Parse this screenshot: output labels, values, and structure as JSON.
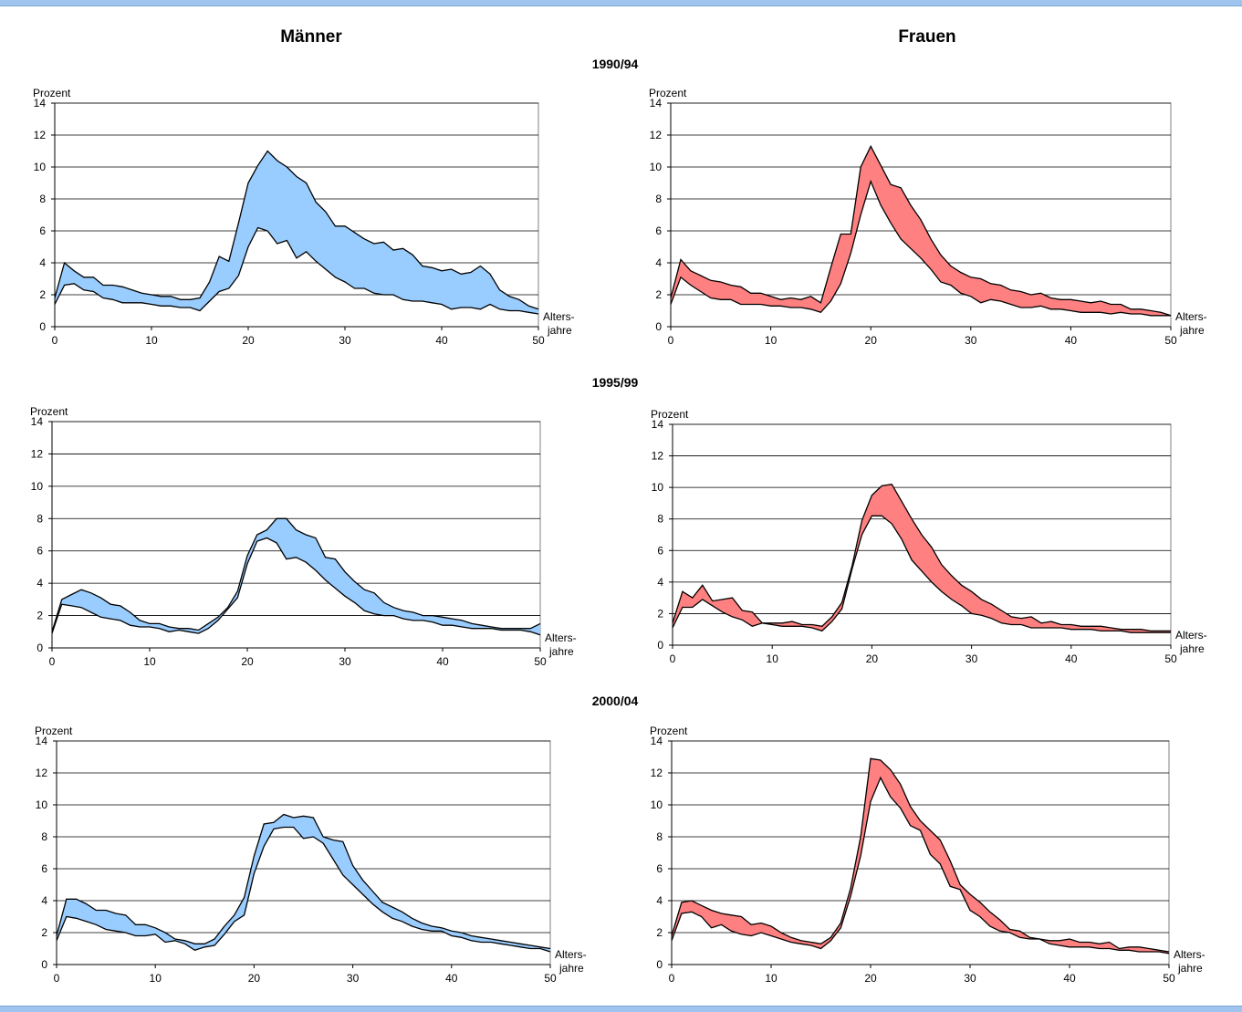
{
  "colors": {
    "men_fill": "#99ccff",
    "women_fill": "#ff8080",
    "line": "#000000",
    "grid": "#000000",
    "frame": "#808080",
    "banner": "#9fc5ee"
  },
  "headers": {
    "men": "Männer",
    "women": "Frauen"
  },
  "periods": [
    "1990/94",
    "1995/99",
    "2000/04"
  ],
  "chart_data": [
    {
      "type": "area",
      "series_kind": "band",
      "period": "1990/94",
      "sex": "Männer",
      "ylabel": "Prozent",
      "xlabel": [
        "Alters-",
        "jahre"
      ],
      "xlim": [
        0,
        50
      ],
      "ylim": [
        0,
        14
      ],
      "xticks": [
        0,
        10,
        20,
        30,
        40,
        50
      ],
      "yticks": [
        0,
        2,
        4,
        6,
        8,
        10,
        12,
        14
      ],
      "grid": "horizontal",
      "x": [
        0,
        1,
        2,
        3,
        4,
        5,
        6,
        7,
        8,
        9,
        10,
        11,
        12,
        13,
        14,
        15,
        16,
        17,
        18,
        19,
        20,
        21,
        22,
        23,
        24,
        25,
        26,
        27,
        28,
        29,
        30,
        31,
        32,
        33,
        34,
        35,
        36,
        37,
        38,
        39,
        40,
        41,
        42,
        43,
        44,
        45,
        46,
        47,
        48,
        49,
        50
      ],
      "upper": [
        1.8,
        4.0,
        3.5,
        3.1,
        3.1,
        2.6,
        2.6,
        2.5,
        2.3,
        2.1,
        2.0,
        1.9,
        1.9,
        1.7,
        1.7,
        1.8,
        2.8,
        4.4,
        4.1,
        6.5,
        9.0,
        10.1,
        11.0,
        10.4,
        10.0,
        9.4,
        9.0,
        7.8,
        7.2,
        6.3,
        6.3,
        5.9,
        5.5,
        5.2,
        5.3,
        4.8,
        4.9,
        4.5,
        3.8,
        3.7,
        3.5,
        3.6,
        3.3,
        3.4,
        3.8,
        3.3,
        2.3,
        1.9,
        1.7,
        1.3,
        1.1
      ],
      "lower": [
        1.4,
        2.6,
        2.7,
        2.3,
        2.2,
        1.8,
        1.7,
        1.5,
        1.5,
        1.5,
        1.4,
        1.3,
        1.3,
        1.2,
        1.2,
        1.0,
        1.6,
        2.2,
        2.4,
        3.2,
        5.0,
        6.2,
        6.0,
        5.2,
        5.4,
        4.3,
        4.7,
        4.1,
        3.6,
        3.1,
        2.8,
        2.4,
        2.4,
        2.1,
        2.0,
        2.0,
        1.7,
        1.6,
        1.6,
        1.5,
        1.4,
        1.1,
        1.2,
        1.2,
        1.1,
        1.4,
        1.1,
        1.0,
        1.0,
        0.9,
        0.8
      ]
    },
    {
      "type": "area",
      "series_kind": "band",
      "period": "1990/94",
      "sex": "Frauen",
      "ylabel": "Prozent",
      "xlabel": [
        "Alters-",
        "jahre"
      ],
      "xlim": [
        0,
        50
      ],
      "ylim": [
        0,
        14
      ],
      "xticks": [
        0,
        10,
        20,
        30,
        40,
        50
      ],
      "yticks": [
        0,
        2,
        4,
        6,
        8,
        10,
        12,
        14
      ],
      "grid": "horizontal",
      "x": [
        0,
        1,
        2,
        3,
        4,
        5,
        6,
        7,
        8,
        9,
        10,
        11,
        12,
        13,
        14,
        15,
        16,
        17,
        18,
        19,
        20,
        21,
        22,
        23,
        24,
        25,
        26,
        27,
        28,
        29,
        30,
        31,
        32,
        33,
        34,
        35,
        36,
        37,
        38,
        39,
        40,
        41,
        42,
        43,
        44,
        45,
        46,
        47,
        48,
        49,
        50
      ],
      "upper": [
        1.8,
        4.2,
        3.5,
        3.2,
        2.9,
        2.8,
        2.6,
        2.5,
        2.1,
        2.1,
        1.9,
        1.7,
        1.8,
        1.7,
        1.9,
        1.5,
        3.7,
        5.8,
        5.8,
        10.0,
        11.3,
        10.1,
        8.9,
        8.7,
        7.6,
        6.7,
        5.5,
        4.5,
        3.8,
        3.4,
        3.1,
        3.0,
        2.7,
        2.6,
        2.3,
        2.2,
        2.0,
        2.1,
        1.8,
        1.7,
        1.7,
        1.6,
        1.5,
        1.6,
        1.4,
        1.4,
        1.1,
        1.1,
        1.0,
        0.9,
        0.7
      ],
      "lower": [
        1.4,
        3.1,
        2.6,
        2.2,
        1.8,
        1.7,
        1.7,
        1.4,
        1.4,
        1.4,
        1.3,
        1.3,
        1.2,
        1.2,
        1.1,
        0.9,
        1.6,
        2.7,
        4.6,
        7.0,
        9.1,
        7.6,
        6.5,
        5.5,
        4.9,
        4.3,
        3.6,
        2.8,
        2.6,
        2.1,
        1.9,
        1.5,
        1.7,
        1.6,
        1.4,
        1.2,
        1.2,
        1.3,
        1.1,
        1.1,
        1.0,
        0.9,
        0.9,
        0.9,
        0.8,
        0.9,
        0.8,
        0.8,
        0.7,
        0.7,
        0.7
      ]
    },
    {
      "type": "area",
      "series_kind": "band",
      "period": "1995/99",
      "sex": "Männer",
      "ylabel": "Prozent",
      "xlabel": [
        "Alters-",
        "jahre"
      ],
      "xlim": [
        0,
        50
      ],
      "ylim": [
        0,
        14
      ],
      "xticks": [
        0,
        10,
        20,
        30,
        40,
        50
      ],
      "yticks": [
        0,
        2,
        4,
        6,
        8,
        10,
        12,
        14
      ],
      "grid": "horizontal",
      "x": [
        0,
        1,
        2,
        3,
        4,
        5,
        6,
        7,
        8,
        9,
        10,
        11,
        12,
        13,
        14,
        15,
        16,
        17,
        18,
        19,
        20,
        21,
        22,
        23,
        24,
        25,
        26,
        27,
        28,
        29,
        30,
        31,
        32,
        33,
        34,
        35,
        36,
        37,
        38,
        39,
        40,
        41,
        42,
        43,
        44,
        45,
        46,
        47,
        48,
        49,
        50
      ],
      "upper": [
        1.0,
        3.0,
        3.3,
        3.6,
        3.4,
        3.1,
        2.7,
        2.6,
        2.2,
        1.7,
        1.5,
        1.5,
        1.3,
        1.2,
        1.2,
        1.1,
        1.5,
        1.9,
        2.5,
        3.5,
        5.7,
        7.0,
        7.3,
        8.0,
        8.0,
        7.3,
        7.0,
        6.8,
        5.6,
        5.5,
        4.7,
        4.1,
        3.6,
        3.4,
        2.8,
        2.5,
        2.3,
        2.2,
        2.0,
        2.0,
        1.9,
        1.8,
        1.7,
        1.5,
        1.4,
        1.3,
        1.2,
        1.2,
        1.2,
        1.2,
        1.5
      ],
      "lower": [
        0.9,
        2.7,
        2.6,
        2.5,
        2.2,
        1.9,
        1.8,
        1.7,
        1.4,
        1.3,
        1.3,
        1.2,
        1.0,
        1.1,
        1.0,
        0.9,
        1.2,
        1.7,
        2.4,
        3.1,
        5.2,
        6.6,
        6.8,
        6.5,
        5.5,
        5.6,
        5.3,
        4.8,
        4.2,
        3.7,
        3.2,
        2.8,
        2.3,
        2.1,
        2.0,
        2.0,
        1.8,
        1.7,
        1.7,
        1.6,
        1.4,
        1.4,
        1.3,
        1.2,
        1.2,
        1.2,
        1.1,
        1.1,
        1.1,
        1.0,
        0.8
      ]
    },
    {
      "type": "area",
      "series_kind": "band",
      "period": "1995/99",
      "sex": "Frauen",
      "ylabel": "Prozent",
      "xlabel": [
        "Alters-",
        "jahre"
      ],
      "xlim": [
        0,
        50
      ],
      "ylim": [
        0,
        14
      ],
      "xticks": [
        0,
        10,
        20,
        30,
        40,
        50
      ],
      "yticks": [
        0,
        2,
        4,
        6,
        8,
        10,
        12,
        14
      ],
      "grid": "horizontal",
      "x": [
        0,
        1,
        2,
        3,
        4,
        5,
        6,
        7,
        8,
        9,
        10,
        11,
        12,
        13,
        14,
        15,
        16,
        17,
        18,
        19,
        20,
        21,
        22,
        23,
        24,
        25,
        26,
        27,
        28,
        29,
        30,
        31,
        32,
        33,
        34,
        35,
        36,
        37,
        38,
        39,
        40,
        41,
        42,
        43,
        44,
        45,
        46,
        47,
        48,
        49,
        50
      ],
      "upper": [
        1.4,
        3.4,
        3.0,
        3.8,
        2.8,
        2.9,
        3.0,
        2.2,
        2.1,
        1.4,
        1.4,
        1.4,
        1.5,
        1.3,
        1.3,
        1.2,
        1.8,
        2.7,
        5.0,
        7.9,
        9.5,
        10.1,
        10.2,
        9.1,
        8.0,
        7.0,
        6.2,
        5.1,
        4.4,
        3.8,
        3.4,
        2.9,
        2.6,
        2.2,
        1.8,
        1.7,
        1.8,
        1.4,
        1.5,
        1.3,
        1.3,
        1.2,
        1.2,
        1.2,
        1.1,
        1.0,
        1.0,
        1.0,
        0.9,
        0.9,
        0.9
      ],
      "lower": [
        1.1,
        2.4,
        2.4,
        2.9,
        2.5,
        2.1,
        1.8,
        1.6,
        1.2,
        1.4,
        1.3,
        1.2,
        1.2,
        1.2,
        1.1,
        0.9,
        1.5,
        2.3,
        4.8,
        7.0,
        8.2,
        8.2,
        7.7,
        6.7,
        5.4,
        4.7,
        4.0,
        3.4,
        2.9,
        2.5,
        2.0,
        1.9,
        1.7,
        1.4,
        1.3,
        1.3,
        1.1,
        1.1,
        1.1,
        1.1,
        1.0,
        1.0,
        1.0,
        0.9,
        0.9,
        0.9,
        0.8,
        0.8,
        0.8,
        0.8,
        0.8
      ]
    },
    {
      "type": "area",
      "series_kind": "band",
      "period": "2000/04",
      "sex": "Männer",
      "ylabel": "Prozent",
      "xlabel": [
        "Alters-",
        "jahre"
      ],
      "xlim": [
        0,
        50
      ],
      "ylim": [
        0,
        14
      ],
      "xticks": [
        0,
        10,
        20,
        30,
        40,
        50
      ],
      "yticks": [
        0,
        2,
        4,
        6,
        8,
        10,
        12,
        14
      ],
      "grid": "horizontal",
      "x": [
        0,
        1,
        2,
        3,
        4,
        5,
        6,
        7,
        8,
        9,
        10,
        11,
        12,
        13,
        14,
        15,
        16,
        17,
        18,
        19,
        20,
        21,
        22,
        23,
        24,
        25,
        26,
        27,
        28,
        29,
        30,
        31,
        32,
        33,
        34,
        35,
        36,
        37,
        38,
        39,
        40,
        41,
        42,
        43,
        44,
        45,
        46,
        47,
        48,
        49,
        50
      ],
      "upper": [
        1.8,
        4.1,
        4.1,
        3.8,
        3.4,
        3.4,
        3.2,
        3.1,
        2.5,
        2.5,
        2.3,
        2.0,
        1.6,
        1.5,
        1.3,
        1.3,
        1.6,
        2.4,
        3.1,
        4.2,
        6.8,
        8.8,
        8.9,
        9.4,
        9.2,
        9.3,
        9.2,
        8.0,
        7.8,
        7.7,
        6.2,
        5.3,
        4.6,
        3.9,
        3.6,
        3.3,
        2.9,
        2.6,
        2.4,
        2.3,
        2.1,
        2.0,
        1.8,
        1.7,
        1.6,
        1.5,
        1.4,
        1.3,
        1.2,
        1.1,
        1.0
      ],
      "lower": [
        1.5,
        3.0,
        2.9,
        2.7,
        2.5,
        2.2,
        2.1,
        2.0,
        1.8,
        1.8,
        1.9,
        1.4,
        1.5,
        1.3,
        0.9,
        1.1,
        1.2,
        1.9,
        2.7,
        3.1,
        5.7,
        7.4,
        8.5,
        8.6,
        8.6,
        7.9,
        8.0,
        7.6,
        6.6,
        5.6,
        5.0,
        4.4,
        3.8,
        3.3,
        2.9,
        2.7,
        2.4,
        2.2,
        2.1,
        2.1,
        1.8,
        1.7,
        1.5,
        1.4,
        1.4,
        1.3,
        1.2,
        1.1,
        1.0,
        1.0,
        0.8
      ]
    },
    {
      "type": "area",
      "series_kind": "band",
      "period": "2000/04",
      "sex": "Frauen",
      "ylabel": "Prozent",
      "xlabel": [
        "Alters-",
        "jahre"
      ],
      "xlim": [
        0,
        50
      ],
      "ylim": [
        0,
        14
      ],
      "xticks": [
        0,
        10,
        20,
        30,
        40,
        50
      ],
      "yticks": [
        0,
        2,
        4,
        6,
        8,
        10,
        12,
        14
      ],
      "grid": "horizontal",
      "x": [
        0,
        1,
        2,
        3,
        4,
        5,
        6,
        7,
        8,
        9,
        10,
        11,
        12,
        13,
        14,
        15,
        16,
        17,
        18,
        19,
        20,
        21,
        22,
        23,
        24,
        25,
        26,
        27,
        28,
        29,
        30,
        31,
        32,
        33,
        34,
        35,
        36,
        37,
        38,
        39,
        40,
        41,
        42,
        43,
        44,
        45,
        46,
        47,
        48,
        49,
        50
      ],
      "upper": [
        1.8,
        3.9,
        4.0,
        3.7,
        3.4,
        3.2,
        3.1,
        3.0,
        2.5,
        2.6,
        2.4,
        2.0,
        1.7,
        1.5,
        1.4,
        1.3,
        1.7,
        2.6,
        4.8,
        8.0,
        12.9,
        12.8,
        12.2,
        11.3,
        9.9,
        9.0,
        8.4,
        7.8,
        6.5,
        5.0,
        4.4,
        3.9,
        3.3,
        2.8,
        2.2,
        2.1,
        1.7,
        1.6,
        1.5,
        1.5,
        1.6,
        1.4,
        1.4,
        1.3,
        1.4,
        1.0,
        1.1,
        1.1,
        1.0,
        0.9,
        0.8
      ],
      "lower": [
        1.5,
        3.2,
        3.3,
        3.0,
        2.3,
        2.5,
        2.1,
        1.9,
        1.8,
        2.0,
        1.8,
        1.6,
        1.4,
        1.3,
        1.2,
        1.0,
        1.5,
        2.3,
        4.3,
        6.8,
        10.2,
        11.7,
        10.5,
        9.8,
        8.7,
        8.4,
        6.9,
        6.3,
        4.9,
        4.7,
        3.4,
        3.0,
        2.4,
        2.1,
        2.0,
        1.7,
        1.6,
        1.6,
        1.3,
        1.2,
        1.1,
        1.1,
        1.1,
        1.0,
        1.0,
        0.9,
        0.9,
        0.8,
        0.8,
        0.8,
        0.7
      ]
    }
  ]
}
